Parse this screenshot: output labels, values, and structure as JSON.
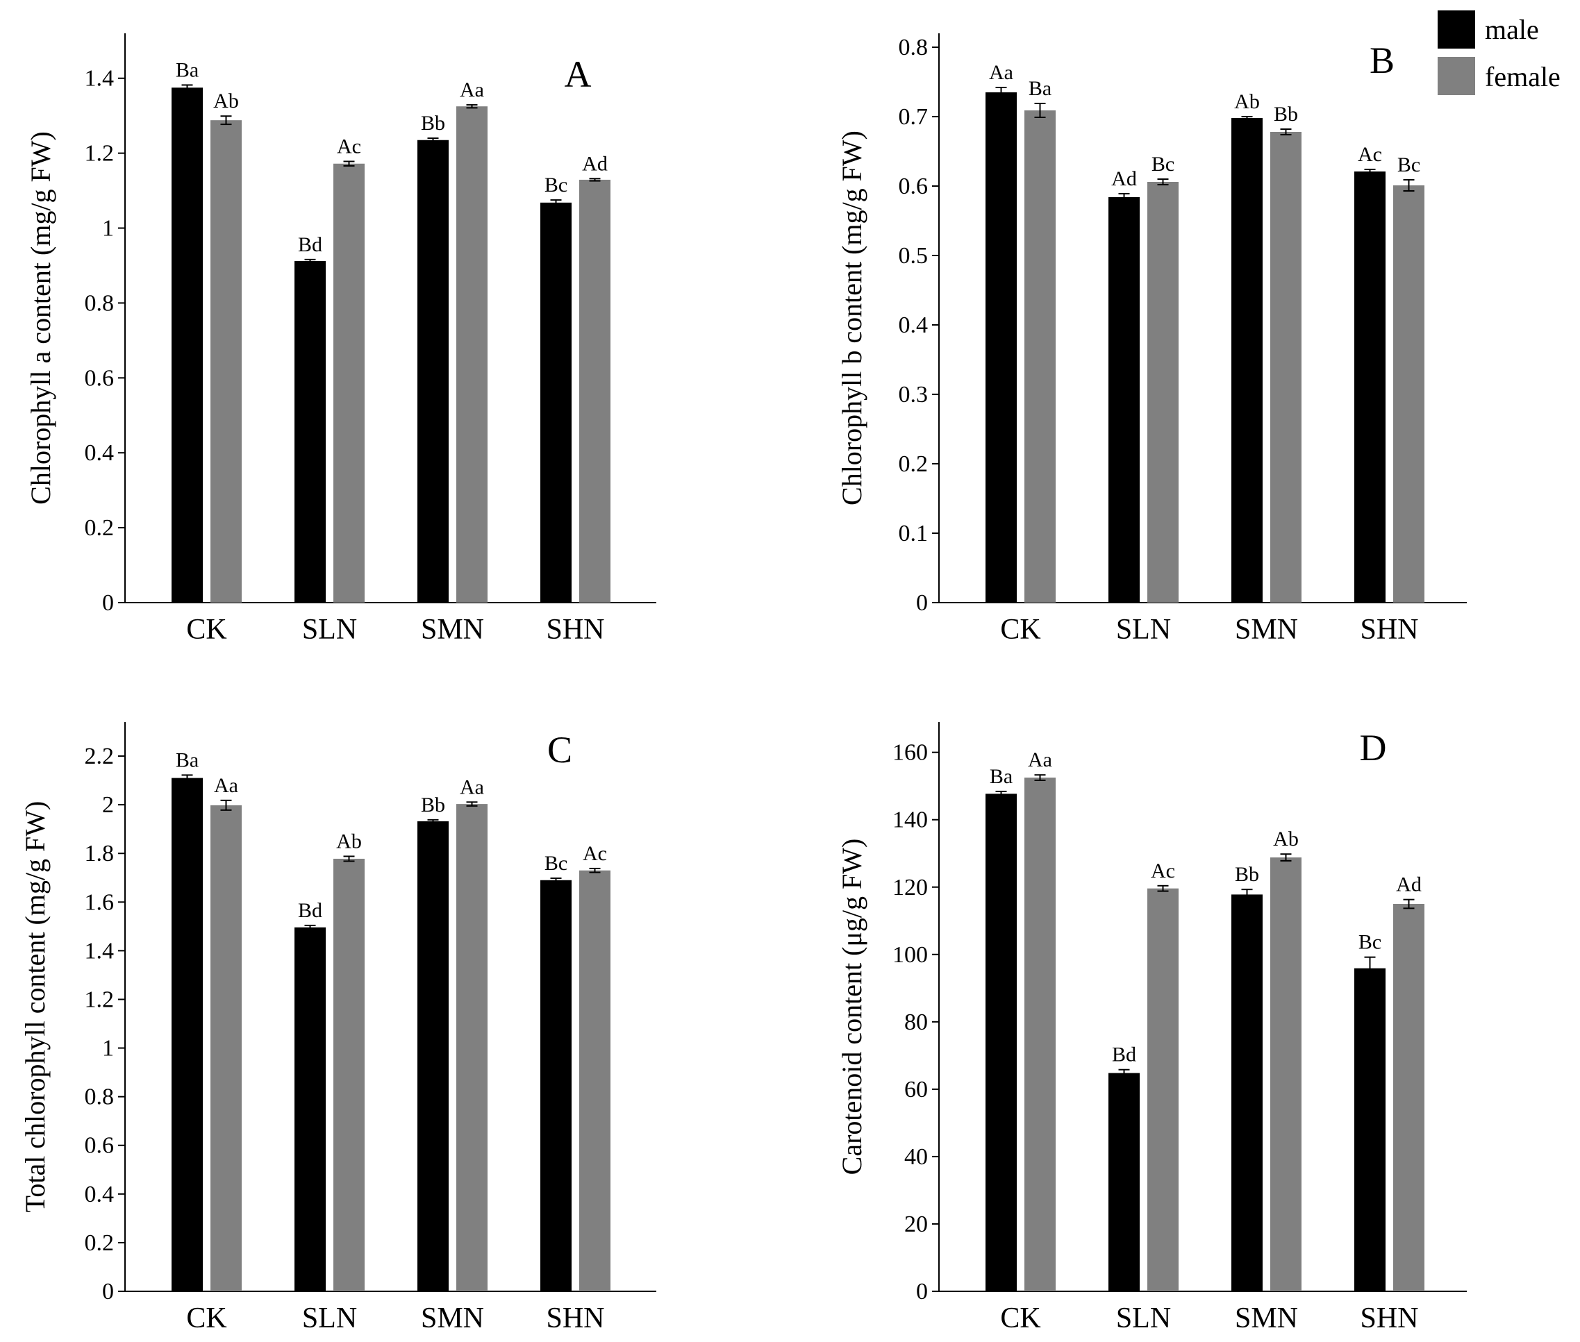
{
  "chart_data": [
    {
      "type": "bar",
      "panel_label": "A",
      "ylabel": "Chlorophyll a content (mg/g FW)",
      "categories": [
        "CK",
        "SLN",
        "SMN",
        "SHN"
      ],
      "ylim": [
        0,
        1.52
      ],
      "yticks": [
        0,
        0.2,
        0.4,
        0.6,
        0.8,
        1,
        1.2,
        1.4
      ],
      "ytick_labels": [
        "0",
        "0.2",
        "0.4",
        "0.6",
        "0.8",
        "1",
        "1.2",
        "1.4"
      ],
      "series": [
        {
          "name": "male",
          "color": "#000000",
          "values": [
            1.375,
            0.912,
            1.235,
            1.068
          ],
          "errors": [
            0.007,
            0.004,
            0.005,
            0.007
          ],
          "letters": [
            "Ba",
            "Bd",
            "Bb",
            "Bc"
          ]
        },
        {
          "name": "female",
          "color": "#808080",
          "values": [
            1.288,
            1.172,
            1.325,
            1.129
          ],
          "errors": [
            0.011,
            0.006,
            0.004,
            0.003
          ],
          "letters": [
            "Ab",
            "Ac",
            "Aa",
            "Ad"
          ]
        }
      ]
    },
    {
      "type": "bar",
      "panel_label": "B",
      "ylabel": "Chlorophyll b content (mg/g FW)",
      "categories": [
        "CK",
        "SLN",
        "SMN",
        "SHN"
      ],
      "ylim": [
        0,
        0.82
      ],
      "yticks": [
        0,
        0.1,
        0.2,
        0.3,
        0.4,
        0.5,
        0.6,
        0.7,
        0.8
      ],
      "ytick_labels": [
        "0",
        "0.1",
        "0.2",
        "0.3",
        "0.4",
        "0.5",
        "0.6",
        "0.7",
        "0.8"
      ],
      "series": [
        {
          "name": "male",
          "color": "#000000",
          "values": [
            0.735,
            0.584,
            0.698,
            0.621
          ],
          "errors": [
            0.007,
            0.005,
            0.002,
            0.003
          ],
          "letters": [
            "Aa",
            "Ad",
            "Ab",
            "Ac"
          ]
        },
        {
          "name": "female",
          "color": "#808080",
          "values": [
            0.709,
            0.606,
            0.678,
            0.601
          ],
          "errors": [
            0.01,
            0.004,
            0.004,
            0.008
          ],
          "letters": [
            "Ba",
            "Bc",
            "Bb",
            "Bc"
          ]
        }
      ]
    },
    {
      "type": "bar",
      "panel_label": "C",
      "ylabel": "Total chlorophyll content (mg/g FW)",
      "categories": [
        "CK",
        "SLN",
        "SMN",
        "SHN"
      ],
      "ylim": [
        0,
        2.34
      ],
      "yticks": [
        0,
        0.2,
        0.4,
        0.6,
        0.8,
        1,
        1.2,
        1.4,
        1.6,
        1.8,
        2,
        2.2
      ],
      "ytick_labels": [
        "0",
        "0.2",
        "0.4",
        "0.6",
        "0.8",
        "1",
        "1.2",
        "1.4",
        "1.6",
        "1.8",
        "2",
        "2.2"
      ],
      "series": [
        {
          "name": "male",
          "color": "#000000",
          "values": [
            2.11,
            1.496,
            1.932,
            1.69
          ],
          "errors": [
            0.012,
            0.008,
            0.006,
            0.008
          ],
          "letters": [
            "Ba",
            "Bd",
            "Bb",
            "Bc"
          ]
        },
        {
          "name": "female",
          "color": "#808080",
          "values": [
            1.998,
            1.778,
            2.003,
            1.73
          ],
          "errors": [
            0.02,
            0.01,
            0.008,
            0.008
          ],
          "letters": [
            "Aa",
            "Ab",
            "Aa",
            "Ac"
          ]
        }
      ]
    },
    {
      "type": "bar",
      "panel_label": "D",
      "ylabel": "Carotenoid content (μg/g FW)",
      "categories": [
        "CK",
        "SLN",
        "SMN",
        "SHN"
      ],
      "ylim": [
        0,
        169
      ],
      "yticks": [
        0,
        20,
        40,
        60,
        80,
        100,
        120,
        140,
        160
      ],
      "ytick_labels": [
        "0",
        "20",
        "40",
        "60",
        "80",
        "100",
        "120",
        "140",
        "160"
      ],
      "series": [
        {
          "name": "male",
          "color": "#000000",
          "values": [
            147.7,
            64.8,
            117.8,
            95.9
          ],
          "errors": [
            0.7,
            1.0,
            1.5,
            3.3
          ],
          "letters": [
            "Ba",
            "Bd",
            "Bb",
            "Bc"
          ]
        },
        {
          "name": "female",
          "color": "#808080",
          "values": [
            152.5,
            119.6,
            128.8,
            115.0
          ],
          "errors": [
            0.8,
            0.8,
            1.0,
            1.3
          ],
          "letters": [
            "Aa",
            "Ac",
            "Ab",
            "Ad"
          ]
        }
      ]
    }
  ],
  "legend": {
    "entries": [
      {
        "name": "male",
        "color": "#000000"
      },
      {
        "name": "female",
        "color": "#808080"
      }
    ]
  }
}
